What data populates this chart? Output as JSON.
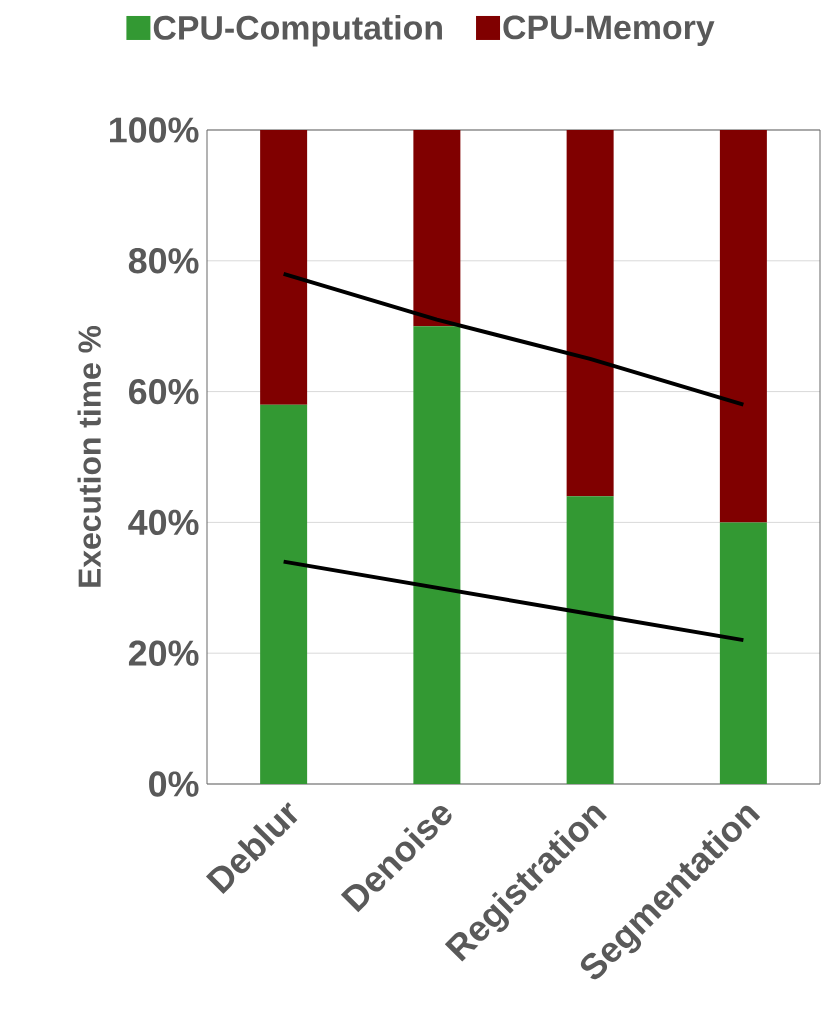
{
  "chart_data": {
    "type": "bar",
    "stacked": true,
    "ylabel": "Execution time %",
    "categories": [
      "Deblur",
      "Denoise",
      "Registration",
      "Segmentation"
    ],
    "series": [
      {
        "name": "CPU-Computation",
        "color": "#339933",
        "values": [
          58,
          70,
          44,
          40
        ]
      },
      {
        "name": "CPU-Memory",
        "color": "#800000",
        "values": [
          42,
          30,
          56,
          60
        ]
      },
      {
        "type": "line",
        "color": "#000000",
        "values": [
          78,
          71,
          65,
          58
        ]
      },
      {
        "type": "line",
        "color": "#000000",
        "values": [
          34,
          30,
          26,
          22
        ]
      }
    ],
    "ylim": [
      0,
      100
    ],
    "yticks": [
      {
        "value": 0,
        "label": "0%"
      },
      {
        "value": 20,
        "label": "20%"
      },
      {
        "value": 40,
        "label": "40%"
      },
      {
        "value": 60,
        "label": "60%"
      },
      {
        "value": 80,
        "label": "80%"
      },
      {
        "value": 100,
        "label": "100%"
      }
    ],
    "grid": "y",
    "legend": "top"
  }
}
